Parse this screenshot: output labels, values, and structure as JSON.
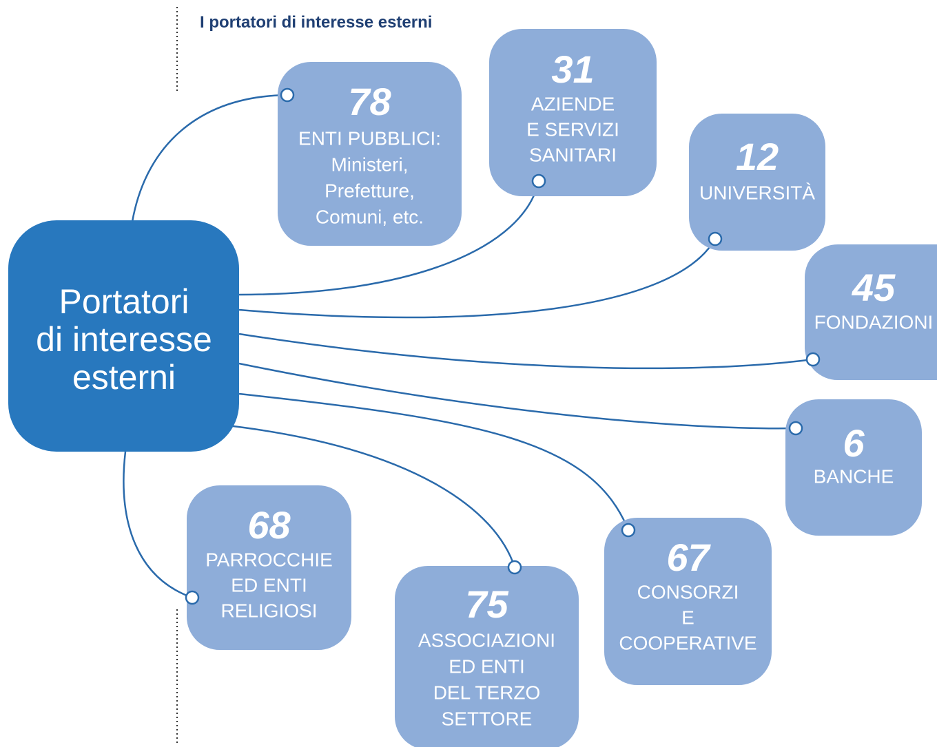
{
  "title": "I portatori di interesse esterni",
  "center": {
    "lines": [
      "Portatori",
      "di interesse",
      "esterni"
    ]
  },
  "nodes": [
    {
      "count": "78",
      "lines": [
        "ENTI PUBBLICI:",
        "Ministeri,",
        "Prefetture,",
        "Comuni, etc."
      ]
    },
    {
      "count": "31",
      "lines": [
        "AZIENDE",
        "E SERVIZI",
        "SANITARI"
      ]
    },
    {
      "count": "12",
      "lines": [
        "UNIVERSITÀ"
      ]
    },
    {
      "count": "45",
      "lines": [
        "FONDAZIONI"
      ]
    },
    {
      "count": "6",
      "lines": [
        "BANCHE"
      ]
    },
    {
      "count": "67",
      "lines": [
        "CONSORZI",
        "E",
        "COOPERATIVE"
      ]
    },
    {
      "count": "75",
      "lines": [
        "ASSOCIAZIONI",
        "ED ENTI",
        "DEL TERZO",
        "SETTORE"
      ]
    },
    {
      "count": "68",
      "lines": [
        "PARROCCHIE",
        "ED ENTI",
        "RELIGIOSI"
      ]
    }
  ]
}
